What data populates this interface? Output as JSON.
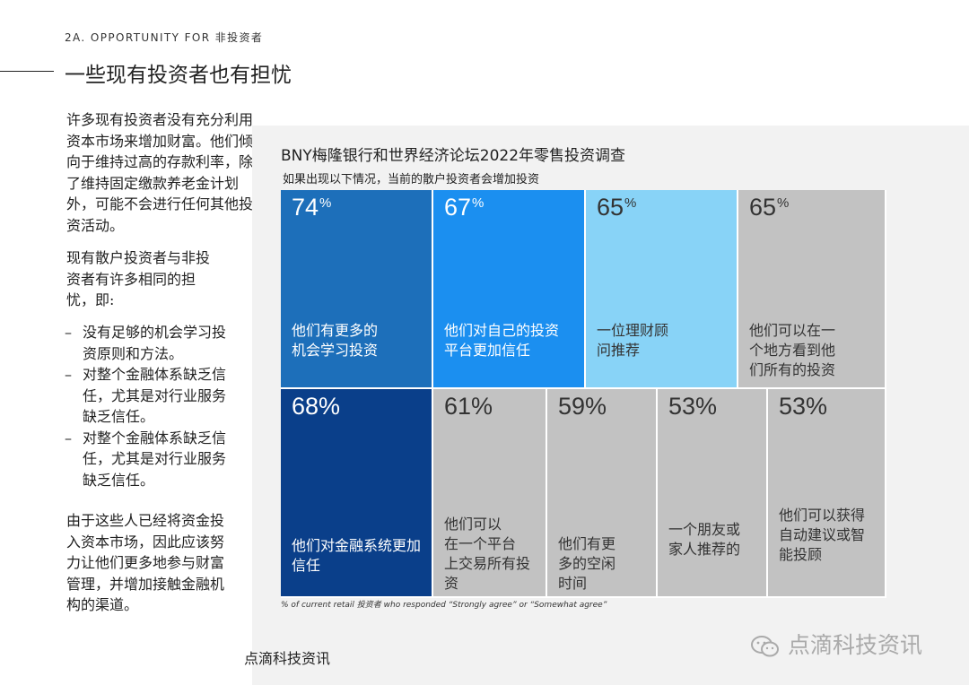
{
  "header": {
    "eyebrow": "2A. OPPORTUNITY FOR 非投资者",
    "title": "一些现有投资者也有担忧"
  },
  "body": {
    "intro": "许多现有投资者没有充分利用资本市场来增加财富。他们倾向于维持过高的存款利率，除了维持固定缴款养老金计划外，可能不会进行任何其他投资活动。",
    "paragraph2": "现有散户投资者与非投资者有许多相同的担忧，即:",
    "bullets": [
      "没有足够的机会学习投资原则和方法。",
      "对整个金融体系缺乏信任，尤其是对行业服务缺乏信任。",
      "对整个金融体系缺乏信任，尤其是对行业服务缺乏信任。"
    ],
    "paragraph3": "由于这些人已经将资金投入资本市场，因此应该努力让他们更多地参与财富管理，并增加接触金融机构的渠道。"
  },
  "chart_data": {
    "type": "treemap",
    "title": "BNY梅隆银行和世界经济论坛2022年零售投资调查",
    "subtitle": "如果出现以下情况，当前的散户投资者会增加投资",
    "footnote": "% of current retail 投资者 who responded “Strongly agree” or “Somewhat agree”",
    "items": [
      {
        "value": 74,
        "label": "他们有更多的机会学习投资",
        "display": "74%",
        "color": "#1d6fba",
        "text_color": "#ffffff"
      },
      {
        "value": 67,
        "label": "他们对自己的投资平台更加信任",
        "display": "67%",
        "color": "#1b8ff0",
        "text_color": "#ffffff"
      },
      {
        "value": 65,
        "label": "一位理财顾问推荐",
        "display": "65%",
        "color": "#88d3f7",
        "text_color": "#333333"
      },
      {
        "value": 65,
        "label": "他们可以在一个地方看到他们所有的投资",
        "display": "65%",
        "color": "#c2c2c2",
        "text_color": "#333333"
      },
      {
        "value": 68,
        "label": "他们对金融系统更加信任",
        "display": "68%",
        "color": "#0a3f8a",
        "text_color": "#ffffff"
      },
      {
        "value": 61,
        "label": "他们可以在一个平台上交易所有投资",
        "display": "61%",
        "color": "#c2c2c2",
        "text_color": "#333333"
      },
      {
        "value": 59,
        "label": "他们有更多的空闲时间",
        "display": "59%",
        "color": "#c2c2c2",
        "text_color": "#333333"
      },
      {
        "value": 53,
        "label": "一个朋友或家人推荐的",
        "display": "53%",
        "color": "#c2c2c2",
        "text_color": "#333333"
      },
      {
        "value": 53,
        "label": "他们可以获得自动建议或智能投顾",
        "display": "53%",
        "color": "#c2c2c2",
        "text_color": "#333333"
      }
    ]
  },
  "watermark": "点滴科技资讯",
  "caption": "点滴科技资讯"
}
